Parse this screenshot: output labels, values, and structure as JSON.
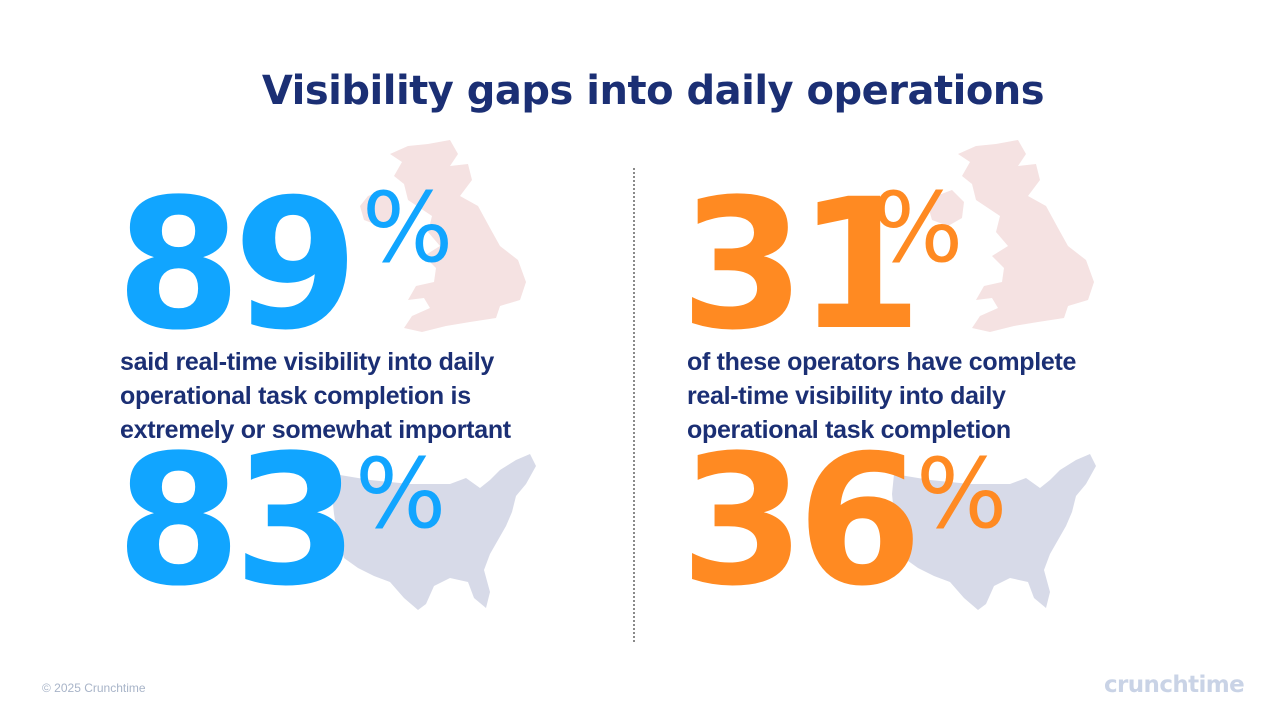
{
  "title": "Visibility gaps into daily operations",
  "stats": {
    "left_top": {
      "value": "89",
      "unit": "%"
    },
    "left_bottom": {
      "value": "83",
      "unit": "%"
    },
    "right_top": {
      "value": "31",
      "unit": "%"
    },
    "right_bottom": {
      "value": "36",
      "unit": "%"
    }
  },
  "descriptions": {
    "left": "said real-time visibility into daily operational task completion is extremely or somewhat important",
    "right": "of these operators have complete real-time visibility into daily operational task completion"
  },
  "footer": {
    "copyright": "© 2025 Crunchtime",
    "logo": "crunchtime"
  },
  "colors": {
    "title": "#1b2f74",
    "blue": "#11a5ff",
    "orange": "#ff8a22",
    "uk_map": "#f5e2e2",
    "us_map": "#d7dae8"
  },
  "icons": [
    "uk-map-icon",
    "us-map-icon"
  ]
}
